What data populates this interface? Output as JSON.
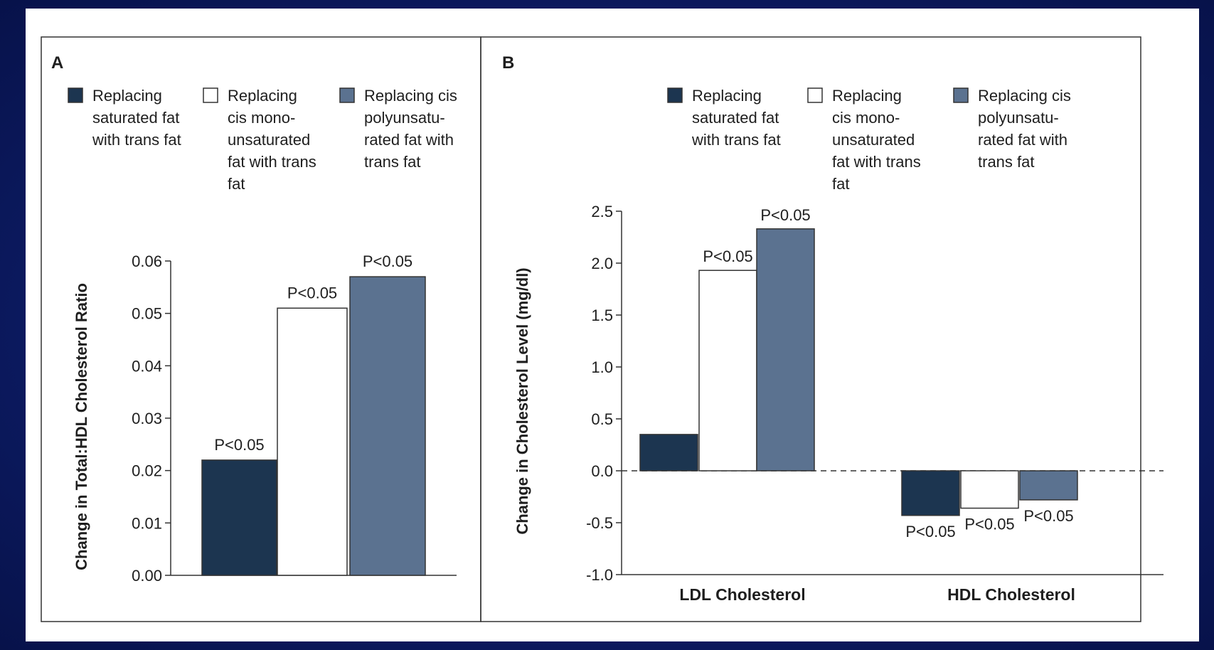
{
  "colors": {
    "background": "#0d1c66",
    "series_dark": "#1c3550",
    "series_white": "#ffffff",
    "series_gray": "#5b7290",
    "axis": "#333333"
  },
  "chart_data": [
    {
      "panel": "A",
      "type": "bar",
      "ylabel": "Change in Total:HDL Cholesterol Ratio",
      "ylim": [
        0.0,
        0.06
      ],
      "yticks": [
        "0.00",
        "0.01",
        "0.02",
        "0.03",
        "0.04",
        "0.05",
        "0.06"
      ],
      "legend_placement": "top",
      "series": [
        {
          "name": "Replacing saturated fat with trans fat",
          "legend_lines": [
            "Replacing",
            "saturated fat",
            "with trans fat"
          ],
          "value": 0.022,
          "annotation": "P<0.05"
        },
        {
          "name": "Replacing cis monounsaturated fat with trans fat",
          "legend_lines": [
            "Replacing",
            "cis mono-",
            "unsaturated",
            "fat with trans",
            "fat"
          ],
          "value": 0.051,
          "annotation": "P<0.05"
        },
        {
          "name": "Replacing cis polyunsaturated fat with trans fat",
          "legend_lines": [
            "Replacing cis",
            "polyunsatu-",
            "rated fat with",
            "trans fat"
          ],
          "value": 0.057,
          "annotation": "P<0.05"
        }
      ]
    },
    {
      "panel": "B",
      "type": "bar",
      "ylabel": "Change in Cholesterol Level (mg/dl)",
      "ylim": [
        -1.0,
        2.5
      ],
      "yticks": [
        "-1.0",
        "-0.5",
        "0.0",
        "0.5",
        "1.0",
        "1.5",
        "2.0",
        "2.5"
      ],
      "zero_line": "dashed",
      "legend_placement": "top",
      "categories": [
        "LDL Cholesterol",
        "HDL Cholesterol"
      ],
      "series": [
        {
          "name": "Replacing saturated fat with trans fat",
          "legend_lines": [
            "Replacing",
            "saturated fat",
            "with trans fat"
          ],
          "values": [
            0.35,
            -0.43
          ],
          "annotations": [
            "",
            "P<0.05"
          ]
        },
        {
          "name": "Replacing cis monounsaturated fat with trans fat",
          "legend_lines": [
            "Replacing",
            "cis mono-",
            "unsaturated",
            "fat with trans",
            "fat"
          ],
          "values": [
            1.93,
            -0.36
          ],
          "annotations": [
            "P<0.05",
            "P<0.05"
          ]
        },
        {
          "name": "Replacing cis polyunsaturated fat with trans fat",
          "legend_lines": [
            "Replacing cis",
            "polyunsatu-",
            "rated fat with",
            "trans fat"
          ],
          "values": [
            2.33,
            -0.28
          ],
          "annotations": [
            "P<0.05",
            "P<0.05"
          ]
        }
      ]
    }
  ]
}
